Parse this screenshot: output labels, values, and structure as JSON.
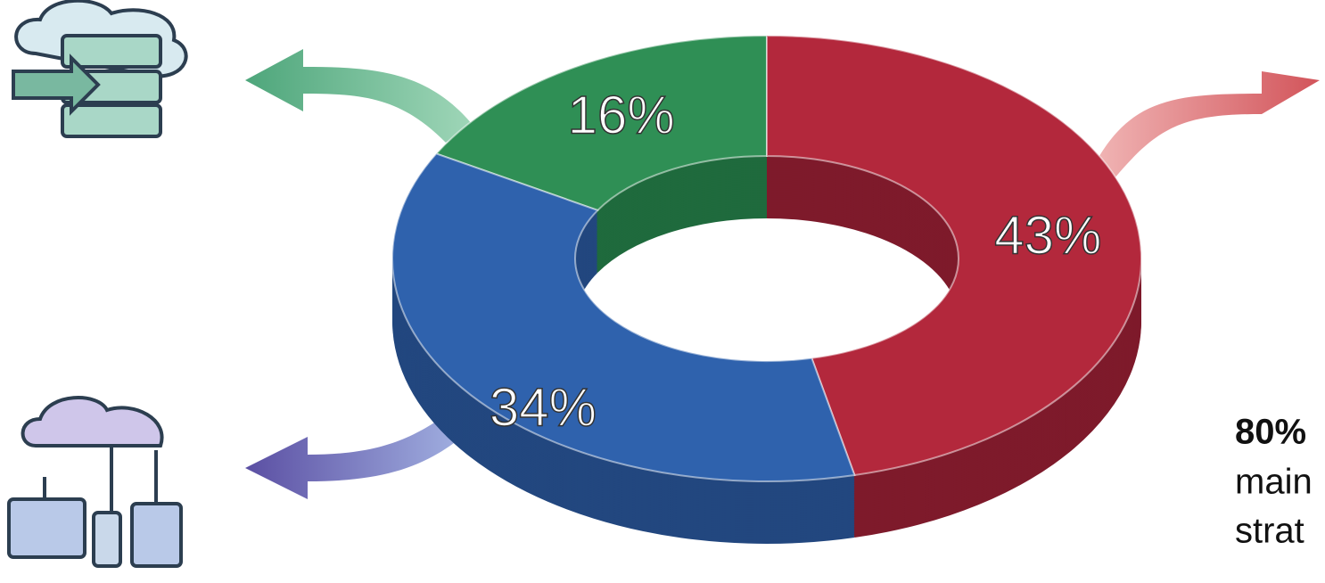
{
  "chart_data": {
    "type": "pie",
    "values": [
      16,
      43,
      34
    ],
    "value_labels": [
      "16%",
      "43%",
      "34%"
    ],
    "colors": [
      "#2f8f55",
      "#b3283c",
      "#2f62ad"
    ],
    "side_colors": [
      "#1f6a3d",
      "#7e1a2b",
      "#22477f"
    ],
    "annotations": [
      "80%",
      "main",
      "strat"
    ]
  }
}
